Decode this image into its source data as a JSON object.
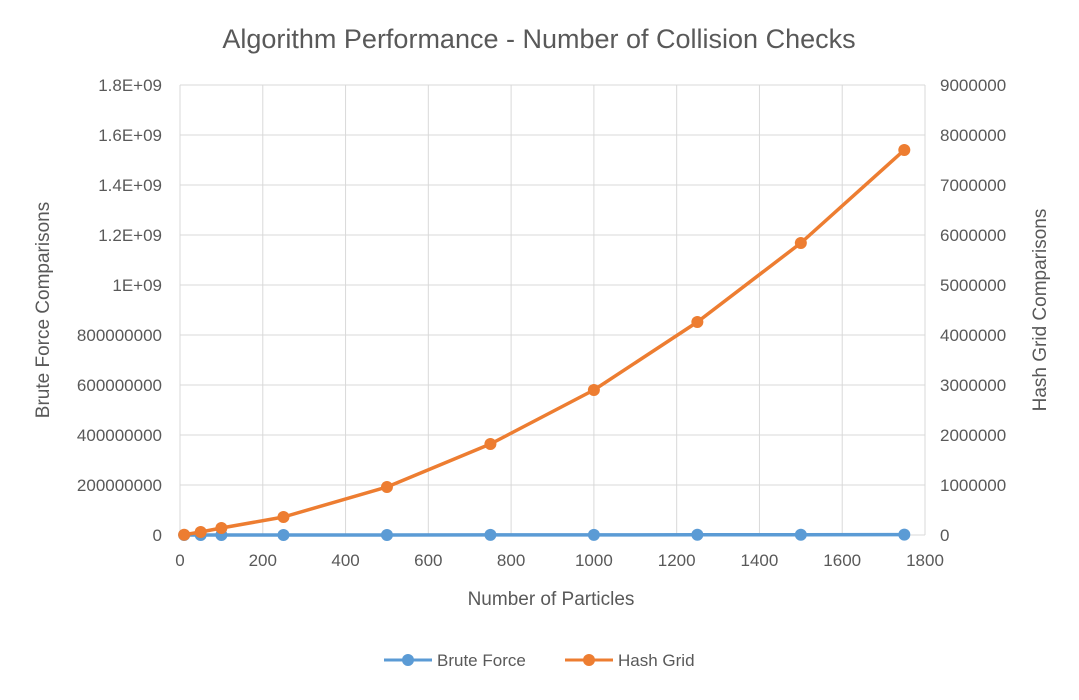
{
  "chart_data": {
    "type": "line",
    "title": "Algorithm Performance - Number of Collision Checks",
    "xlabel": "Number of Particles",
    "ylabel": "Brute Force Comparisons",
    "y2label": "Hash Grid Comparisons",
    "xlim": [
      0,
      1800
    ],
    "ylim": [
      0,
      1800000000
    ],
    "y2lim": [
      0,
      9000000
    ],
    "grid": true,
    "legend_position": "bottom",
    "x_ticks": [
      "0",
      "200",
      "400",
      "600",
      "800",
      "1000",
      "1200",
      "1400",
      "1600",
      "1800"
    ],
    "y_ticks": [
      "0",
      "200000000",
      "400000000",
      "600000000",
      "800000000",
      "1E+09",
      "1.2E+09",
      "1.4E+09",
      "1.6E+09",
      "1.8E+09"
    ],
    "y2_ticks": [
      "0",
      "1000000",
      "2000000",
      "3000000",
      "4000000",
      "5000000",
      "6000000",
      "7000000",
      "8000000",
      "9000000"
    ],
    "x": [
      10,
      50,
      100,
      250,
      500,
      750,
      1000,
      1250,
      1500,
      1750
    ],
    "series": [
      {
        "name": "Brute Force",
        "axis": "left",
        "color": "#5b9bd5",
        "values": [
          45,
          1225,
          4950,
          31125,
          124750,
          280875,
          499500,
          780625,
          1124250,
          1530375
        ]
      },
      {
        "name": "Hash Grid",
        "axis": "right",
        "color": "#ed7d31",
        "values": [
          5000,
          60000,
          140000,
          360000,
          960000,
          1820000,
          2900000,
          4260000,
          5840000,
          7700000
        ]
      }
    ]
  }
}
